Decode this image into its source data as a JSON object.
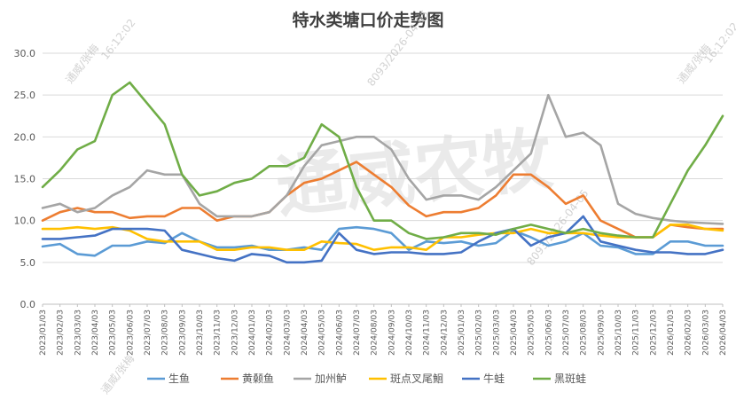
{
  "chart_data": {
    "type": "line",
    "title": "特水类塘口价走势图",
    "ylim": [
      0,
      30
    ],
    "yticks": [
      "0.0",
      "5.0",
      "10.0",
      "15.0",
      "20.0",
      "25.0",
      "30.0"
    ],
    "x_labels": [
      "2023/01/03",
      "2023/02/03",
      "2023/03/03",
      "2023/04/03",
      "2023/05/03",
      "2023/06/03",
      "2023/07/03",
      "2023/08/03",
      "2023/09/03",
      "2023/10/03",
      "2023/11/03",
      "2023/12/03",
      "2024/01/03",
      "2024/02/03",
      "2024/03/03",
      "2024/04/03",
      "2024/05/03",
      "2024/06/03",
      "2024/07/03",
      "2024/08/03",
      "2024/09/03",
      "2024/10/03",
      "2024/11/03",
      "2024/12/03",
      "2025/01/03",
      "2025/02/03",
      "2025/03/03",
      "2025/04/03",
      "2025/05/03",
      "2025/06/03",
      "2025/07/03",
      "2025/08/03",
      "2025/09/03",
      "2025/10/03",
      "2025/11/03",
      "2025/12/03",
      "2026/01/03",
      "2026/02/03",
      "2026/03/03",
      "2026/04/03"
    ],
    "grid": "horizontal",
    "legend_position": "bottom",
    "series": [
      {
        "name": "生鱼",
        "color": "#5b9bd5",
        "points": [
          [
            0,
            6.9
          ],
          [
            1,
            7.2
          ],
          [
            2,
            6.0
          ],
          [
            3,
            5.8
          ],
          [
            4,
            7.0
          ],
          [
            5,
            7.0
          ],
          [
            6,
            7.5
          ],
          [
            7,
            7.3
          ],
          [
            8,
            8.5
          ],
          [
            9,
            7.5
          ],
          [
            10,
            6.8
          ],
          [
            11,
            6.8
          ],
          [
            12,
            7.0
          ],
          [
            13,
            6.5
          ],
          [
            14,
            6.5
          ],
          [
            15,
            6.8
          ],
          [
            16,
            6.5
          ],
          [
            17,
            9.0
          ],
          [
            18,
            9.2
          ],
          [
            19,
            9.0
          ],
          [
            20,
            8.5
          ],
          [
            21,
            6.5
          ],
          [
            22,
            7.5
          ],
          [
            23,
            7.3
          ],
          [
            24,
            7.5
          ],
          [
            25,
            7.0
          ],
          [
            26,
            7.3
          ],
          [
            27,
            8.8
          ],
          [
            28,
            8.0
          ],
          [
            29,
            7.0
          ],
          [
            30,
            7.5
          ],
          [
            31,
            8.5
          ],
          [
            32,
            7.0
          ],
          [
            33,
            6.8
          ],
          [
            34,
            6.0
          ],
          [
            35,
            6.0
          ],
          [
            36,
            7.5
          ],
          [
            37,
            7.5
          ],
          [
            38,
            7.0
          ],
          [
            39,
            7.0
          ]
        ]
      },
      {
        "name": "黄颡鱼",
        "color": "#ed7d31",
        "points": [
          [
            0,
            10.0
          ],
          [
            1,
            11.0
          ],
          [
            2,
            11.5
          ],
          [
            3,
            11.0
          ],
          [
            4,
            11.0
          ],
          [
            5,
            10.3
          ],
          [
            6,
            10.5
          ],
          [
            7,
            10.5
          ],
          [
            8,
            11.5
          ],
          [
            9,
            11.5
          ],
          [
            10,
            10.0
          ],
          [
            11,
            10.5
          ],
          [
            12,
            10.5
          ],
          [
            13,
            11.0
          ],
          [
            14,
            13.0
          ],
          [
            15,
            14.5
          ],
          [
            16,
            15.0
          ],
          [
            17,
            16.0
          ],
          [
            18,
            17.0
          ],
          [
            19,
            15.5
          ],
          [
            20,
            14.0
          ],
          [
            21,
            11.8
          ],
          [
            22,
            10.5
          ],
          [
            23,
            11.0
          ],
          [
            24,
            11.0
          ],
          [
            25,
            11.5
          ],
          [
            26,
            13.0
          ],
          [
            27,
            15.5
          ],
          [
            28,
            15.5
          ],
          [
            29,
            14.0
          ],
          [
            30,
            12.0
          ],
          [
            31,
            13.0
          ],
          [
            32,
            10.0
          ],
          [
            33,
            9.0
          ],
          [
            34,
            8.0
          ],
          [
            35,
            8.0
          ],
          [
            36,
            9.5
          ],
          [
            37,
            9.2
          ],
          [
            38,
            9.0
          ],
          [
            39,
            9.0
          ]
        ]
      },
      {
        "name": "加州鲈",
        "color": "#a5a5a5",
        "points": [
          [
            0,
            11.5
          ],
          [
            1,
            12.0
          ],
          [
            2,
            11.0
          ],
          [
            3,
            11.5
          ],
          [
            4,
            13.0
          ],
          [
            5,
            14.0
          ],
          [
            6,
            16.0
          ],
          [
            7,
            15.5
          ],
          [
            8,
            15.5
          ],
          [
            9,
            12.0
          ],
          [
            10,
            10.5
          ],
          [
            11,
            10.5
          ],
          [
            12,
            10.5
          ],
          [
            13,
            11.0
          ],
          [
            14,
            13.0
          ],
          [
            15,
            16.5
          ],
          [
            16,
            19.0
          ],
          [
            17,
            19.5
          ],
          [
            18,
            20.0
          ],
          [
            19,
            20.0
          ],
          [
            20,
            18.5
          ],
          [
            21,
            15.0
          ],
          [
            22,
            12.5
          ],
          [
            23,
            13.0
          ],
          [
            24,
            13.0
          ],
          [
            25,
            12.5
          ],
          [
            26,
            14.0
          ],
          [
            27,
            16.0
          ],
          [
            28,
            18.0
          ],
          [
            29,
            25.0
          ],
          [
            30,
            20.0
          ],
          [
            31,
            20.5
          ],
          [
            32,
            19.0
          ],
          [
            33,
            12.0
          ],
          [
            34,
            10.8
          ],
          [
            35,
            10.3
          ],
          [
            36,
            10.0
          ],
          [
            37,
            9.8
          ],
          [
            38,
            9.7
          ],
          [
            39,
            9.6
          ]
        ]
      },
      {
        "name": "斑点叉尾鮰",
        "color": "#ffc000",
        "points": [
          [
            0,
            9.0
          ],
          [
            1,
            9.0
          ],
          [
            2,
            9.2
          ],
          [
            3,
            9.0
          ],
          [
            4,
            9.2
          ],
          [
            5,
            8.8
          ],
          [
            6,
            7.8
          ],
          [
            7,
            7.5
          ],
          [
            8,
            7.5
          ],
          [
            9,
            7.5
          ],
          [
            10,
            6.5
          ],
          [
            11,
            6.5
          ],
          [
            12,
            6.8
          ],
          [
            13,
            6.8
          ],
          [
            14,
            6.5
          ],
          [
            15,
            6.5
          ],
          [
            16,
            7.5
          ],
          [
            17,
            7.3
          ],
          [
            18,
            7.2
          ],
          [
            19,
            6.5
          ],
          [
            20,
            6.8
          ],
          [
            21,
            6.8
          ],
          [
            22,
            6.5
          ],
          [
            23,
            8.0
          ],
          [
            24,
            8.0
          ],
          [
            25,
            8.3
          ],
          [
            26,
            8.5
          ],
          [
            27,
            8.5
          ],
          [
            28,
            9.0
          ],
          [
            29,
            8.5
          ],
          [
            30,
            8.5
          ],
          [
            31,
            8.5
          ],
          [
            32,
            8.2
          ],
          [
            33,
            8.0
          ],
          [
            34,
            8.0
          ],
          [
            35,
            8.0
          ],
          [
            36,
            9.5
          ],
          [
            37,
            9.5
          ],
          [
            38,
            9.0
          ],
          [
            39,
            8.8
          ]
        ]
      },
      {
        "name": "牛蛙",
        "color": "#4472c4",
        "points": [
          [
            0,
            7.8
          ],
          [
            1,
            7.8
          ],
          [
            2,
            8.0
          ],
          [
            3,
            8.2
          ],
          [
            4,
            9.0
          ],
          [
            5,
            9.0
          ],
          [
            6,
            9.0
          ],
          [
            7,
            8.8
          ],
          [
            8,
            6.5
          ],
          [
            9,
            6.0
          ],
          [
            10,
            5.5
          ],
          [
            11,
            5.2
          ],
          [
            12,
            6.0
          ],
          [
            13,
            5.8
          ],
          [
            14,
            5.0
          ],
          [
            15,
            5.0
          ],
          [
            16,
            5.2
          ],
          [
            17,
            8.5
          ],
          [
            18,
            6.5
          ],
          [
            19,
            6.0
          ],
          [
            20,
            6.2
          ],
          [
            21,
            6.2
          ],
          [
            22,
            6.0
          ],
          [
            23,
            6.0
          ],
          [
            24,
            6.2
          ],
          [
            25,
            7.5
          ],
          [
            26,
            8.5
          ],
          [
            27,
            9.0
          ],
          [
            28,
            7.0
          ],
          [
            29,
            8.0
          ],
          [
            30,
            8.5
          ],
          [
            31,
            10.5
          ],
          [
            32,
            7.5
          ],
          [
            33,
            7.0
          ],
          [
            34,
            6.5
          ],
          [
            35,
            6.2
          ],
          [
            36,
            6.2
          ],
          [
            37,
            6.0
          ],
          [
            38,
            6.0
          ],
          [
            39,
            6.5
          ]
        ]
      },
      {
        "name": "黑斑蛙",
        "color": "#70ad47",
        "points": [
          [
            0,
            14.0
          ],
          [
            1,
            16.0
          ],
          [
            2,
            18.5
          ],
          [
            3,
            19.5
          ],
          [
            4,
            25.0
          ],
          [
            5,
            26.5
          ],
          [
            6,
            24.0
          ],
          [
            7,
            21.5
          ],
          [
            8,
            15.5
          ],
          [
            9,
            13.0
          ],
          [
            10,
            13.5
          ],
          [
            11,
            14.5
          ],
          [
            12,
            15.0
          ],
          [
            13,
            16.5
          ],
          [
            14,
            16.5
          ],
          [
            15,
            17.5
          ],
          [
            16,
            21.5
          ],
          [
            17,
            20.0
          ],
          [
            18,
            14.0
          ],
          [
            19,
            10.0
          ],
          [
            20,
            10.0
          ],
          [
            21,
            8.5
          ],
          [
            22,
            7.8
          ],
          [
            23,
            8.0
          ],
          [
            24,
            8.5
          ],
          [
            25,
            8.5
          ],
          [
            26,
            8.3
          ],
          [
            27,
            9.0
          ],
          [
            28,
            9.5
          ],
          [
            29,
            9.0
          ],
          [
            30,
            8.5
          ],
          [
            31,
            9.0
          ],
          [
            32,
            8.5
          ],
          [
            33,
            8.2
          ],
          [
            34,
            8.0
          ],
          [
            35,
            8.0
          ],
          [
            36,
            12.0
          ],
          [
            37,
            16.0
          ],
          [
            38,
            19.0
          ],
          [
            39,
            22.5
          ]
        ]
      }
    ]
  },
  "watermarks": {
    "center": "通威农牧",
    "diag_texts": [
      "通威/张梅",
      "16:12:02",
      "8093/2026-04-05"
    ]
  },
  "colors": {
    "grid": "#d9d9d9",
    "axis": "#bfbfbf"
  }
}
